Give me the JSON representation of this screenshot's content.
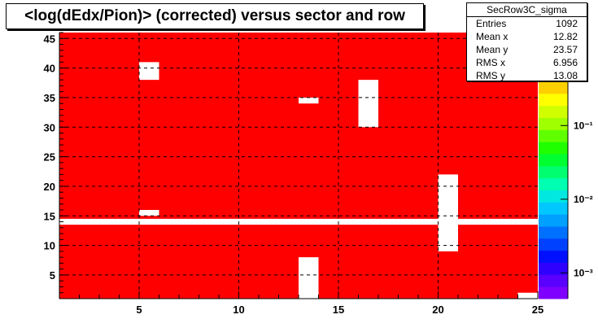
{
  "chart_data": {
    "type": "heatmap",
    "title": "<log(dEdx/Pion)> (corrected) versus sector and row",
    "xlim": [
      1,
      25
    ],
    "ylim": [
      1,
      46
    ],
    "x_ticks": [
      "5",
      "10",
      "15",
      "20",
      "25"
    ],
    "y_ticks": [
      "5",
      "10",
      "15",
      "20",
      "25",
      "30",
      "35",
      "40",
      "45"
    ],
    "x_tick_values": [
      5,
      10,
      15,
      20,
      25
    ],
    "y_tick_values": [
      5,
      10,
      15,
      20,
      25,
      30,
      35,
      40,
      45
    ],
    "fill_color": "#ff0000",
    "empty_cells": [
      {
        "x": [
          1,
          25
        ],
        "y": [
          13.5,
          14.5
        ]
      },
      {
        "x": [
          5,
          6
        ],
        "y": [
          38,
          41
        ]
      },
      {
        "x": [
          5,
          6
        ],
        "y": [
          15,
          16
        ]
      },
      {
        "x": [
          13,
          14
        ],
        "y": [
          34,
          35
        ]
      },
      {
        "x": [
          13,
          14
        ],
        "y": [
          1,
          8
        ]
      },
      {
        "x": [
          16,
          17
        ],
        "y": [
          30,
          38
        ]
      },
      {
        "x": [
          20,
          21
        ],
        "y": [
          9,
          22
        ]
      },
      {
        "x": [
          24,
          25
        ],
        "y": [
          1,
          2
        ]
      }
    ],
    "colorbar": {
      "scale": "log",
      "labels": [
        "10⁻¹",
        "10⁻²",
        "10⁻³"
      ],
      "label_levels": [
        -1,
        -2,
        -3
      ],
      "level_range": [
        -3.35,
        -0.4
      ],
      "colors": [
        "#8000ff",
        "#5a00ff",
        "#3000ff",
        "#0010ff",
        "#0040ff",
        "#0070ff",
        "#00a0ff",
        "#00c8ff",
        "#00e8e0",
        "#00ffb0",
        "#00ff70",
        "#00ff30",
        "#20ff00",
        "#60ff00",
        "#a0ff00",
        "#d0ff00",
        "#ffff00",
        "#ffd000"
      ]
    }
  },
  "stats": {
    "name": "SecRow3C_sigma",
    "entries_label": "Entries",
    "entries_value": "1092",
    "meanx_label": "Mean x",
    "meanx_value": "12.82",
    "meany_label": "Mean y",
    "meany_value": "23.57",
    "rmsx_label": "RMS x",
    "rmsx_value": "6.956",
    "rmsy_label": "RMS y",
    "rmsy_value": "13.08"
  }
}
